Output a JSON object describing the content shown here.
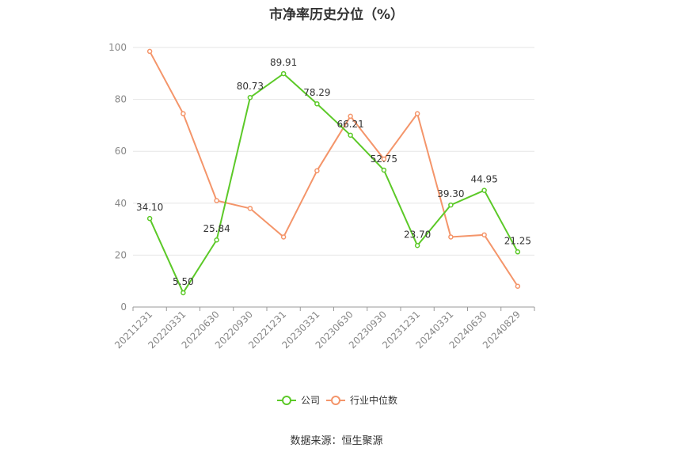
{
  "chart_data": {
    "type": "line",
    "title": "市净率历史分位（%）",
    "categories": [
      "20211231",
      "20220331",
      "20220630",
      "20220930",
      "20221231",
      "20230331",
      "20230630",
      "20230930",
      "20231231",
      "20240331",
      "20240630",
      "20240829"
    ],
    "ylim": [
      0,
      100
    ],
    "yticks": [
      0,
      20,
      40,
      60,
      80,
      100
    ],
    "grid": true,
    "legend_position": "bottom",
    "series": [
      {
        "name": "公司",
        "color": "#5cc928",
        "values": [
          34.1,
          5.5,
          25.84,
          80.73,
          89.91,
          78.29,
          66.21,
          52.75,
          23.7,
          39.3,
          44.95,
          21.25
        ],
        "labels": [
          "34.10",
          "5.50",
          "25.84",
          "80.73",
          "89.91",
          "78.29",
          "66.21",
          "52.75",
          "23.70",
          "39.30",
          "44.95",
          "21.25"
        ]
      },
      {
        "name": "行业中位数",
        "color": "#f4956a",
        "values": [
          98.5,
          74.5,
          41.0,
          38.0,
          27.0,
          52.5,
          73.5,
          57.0,
          74.5,
          27.0,
          27.8,
          8.0
        ]
      }
    ]
  },
  "footer": {
    "source": "数据来源：恒生聚源"
  }
}
